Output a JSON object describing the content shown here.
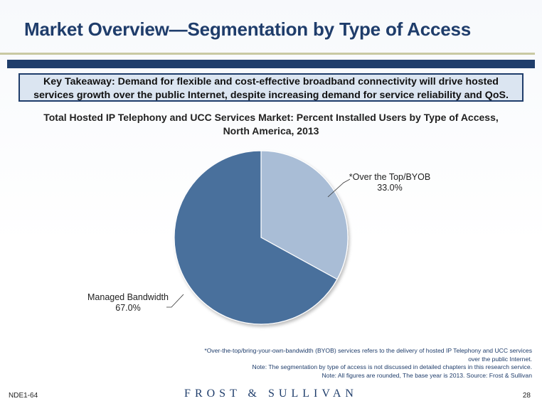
{
  "header": {
    "title": "Market Overview—Segmentation by Type of Access"
  },
  "takeaway": {
    "line1": "Key Takeaway: Demand for flexible and cost-effective broadband connectivity will drive hosted",
    "line2": "services growth over the public Internet, despite increasing demand for service reliability and QoS."
  },
  "chart_data": {
    "type": "pie",
    "title": "Total Hosted IP Telephony and UCC Services Market: Percent Installed Users by Type of Access, North America, 2013",
    "title_line1": "Total Hosted IP Telephony and UCC Services Market: Percent Installed Users by Type of Access,",
    "title_line2": "North America, 2013",
    "slices": [
      {
        "label": "*Over the Top/BYOB",
        "value": 33.0,
        "value_label": "33.0%",
        "color": "#a9bdd6"
      },
      {
        "label": "Managed Bandwidth",
        "value": 67.0,
        "value_label": "67.0%",
        "color": "#4a6f9c"
      }
    ]
  },
  "notes": {
    "line1": "*Over-the-top/bring-your-own-bandwidth (BYOB) services refers to the delivery of hosted IP Telephony and UCC services",
    "line2": "over the public Internet.",
    "line3": "Note: The segmentation by type of access is not discussed in detailed chapters in this research service.",
    "line4": "Note: All figures are rounded, The base year is 2013. Source: Frost & Sullivan"
  },
  "footer": {
    "code": "NDE1-64",
    "brand": "FROST & SULLIVAN",
    "page": "28"
  },
  "colors": {
    "brand_navy": "#1f3d6b",
    "accent_rule": "#c9c9a3",
    "takeaway_bg": "#dbe5f1"
  }
}
